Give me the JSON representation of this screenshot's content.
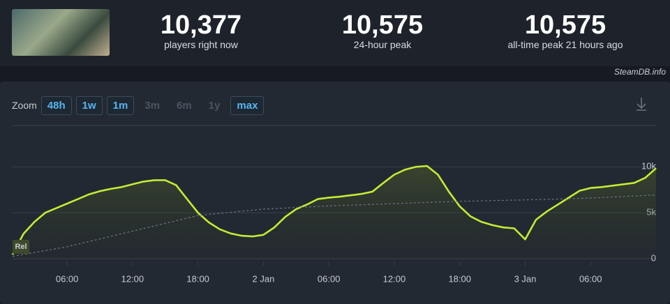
{
  "stats": [
    {
      "value": "10,377",
      "label": "players right now"
    },
    {
      "value": "10,575",
      "label": "24-hour peak"
    },
    {
      "value": "10,575",
      "label": "all-time peak 21 hours ago"
    }
  ],
  "watermark": "SteamDB.info",
  "zoom": {
    "label": "Zoom",
    "options": [
      {
        "label": "48h",
        "enabled": true
      },
      {
        "label": "1w",
        "enabled": true
      },
      {
        "label": "1m",
        "enabled": true
      },
      {
        "label": "3m",
        "enabled": false
      },
      {
        "label": "6m",
        "enabled": false
      },
      {
        "label": "1y",
        "enabled": false
      },
      {
        "label": "max",
        "enabled": true
      }
    ]
  },
  "chart_data": {
    "type": "line",
    "annotation": "Rel",
    "x": [
      1,
      2,
      3,
      4,
      5,
      6,
      7,
      8,
      9,
      10,
      11,
      12,
      13,
      14,
      15,
      16,
      17,
      18,
      19,
      20,
      21,
      22,
      23,
      24,
      25,
      26,
      27,
      28,
      29,
      30,
      31,
      32,
      33,
      34,
      35,
      36,
      37,
      38,
      39,
      40,
      41,
      42,
      43,
      44,
      45,
      46,
      47,
      48,
      49,
      50,
      51,
      52,
      53,
      54,
      55,
      56,
      57,
      58,
      59,
      60
    ],
    "series": [
      {
        "color": "#c3ec34",
        "values": [
          450,
          2700,
          4000,
          5000,
          5500,
          6000,
          6500,
          7000,
          7350,
          7600,
          7800,
          8100,
          8400,
          8550,
          8550,
          8000,
          6500,
          5000,
          3950,
          3200,
          2750,
          2500,
          2420,
          2600,
          3400,
          4550,
          5400,
          5900,
          6500,
          6650,
          6750,
          6900,
          7050,
          7300,
          8250,
          9150,
          9700,
          10000,
          10100,
          9150,
          7300,
          5700,
          4600,
          4000,
          3650,
          3400,
          3300,
          2100,
          4250,
          5150,
          5900,
          6650,
          7400,
          7700,
          7800,
          7950,
          8100,
          8250,
          8800,
          9850
        ]
      },
      {
        "color": "#6b7480",
        "dashed": true,
        "x": [
          1,
          6,
          12,
          18,
          24,
          30,
          36,
          42,
          48,
          54,
          60
        ],
        "values": [
          250,
          1300,
          3000,
          4700,
          5400,
          5750,
          6000,
          6250,
          6400,
          6600,
          6950
        ]
      }
    ],
    "xlim": [
      1,
      60
    ],
    "xticks": [
      {
        "value": 6,
        "label": "06:00"
      },
      {
        "value": 12,
        "label": "12:00"
      },
      {
        "value": 18,
        "label": "18:00"
      },
      {
        "value": 24,
        "label": "2 Jan"
      },
      {
        "value": 30,
        "label": "06:00"
      },
      {
        "value": 36,
        "label": "12:00"
      },
      {
        "value": 42,
        "label": "18:00"
      },
      {
        "value": 48,
        "label": "3 Jan"
      },
      {
        "value": 54,
        "label": "06:00"
      }
    ],
    "ylim": [
      0,
      14500
    ],
    "yticks": [
      0,
      {
        "value": 5000,
        "label": "5k"
      },
      {
        "value": 10000,
        "label": "10k"
      }
    ],
    "grid": true
  }
}
